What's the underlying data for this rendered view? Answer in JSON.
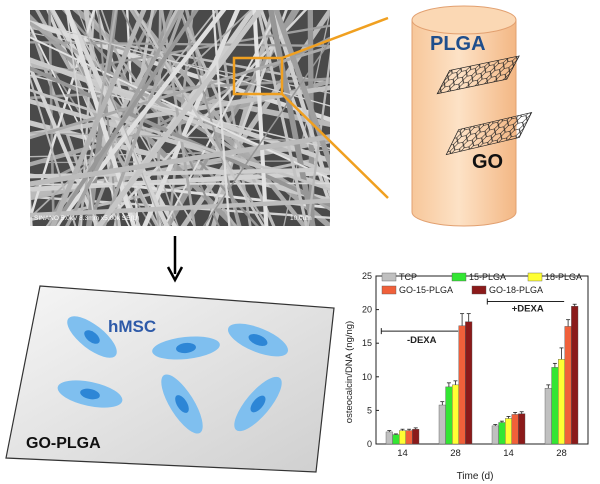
{
  "sem": {
    "caption": "SINANO 5.0kV 8.3mm x5.00k SE(U)",
    "scalebar": "10.0um"
  },
  "scaffold": {
    "top_label": "PLGA",
    "sheet_label": "GO"
  },
  "cells": {
    "cell_label": "hMSC",
    "substrate_label": "GO-PLGA"
  },
  "colors": {
    "accent_orange": "#f0a020",
    "fiber_gray": "#8c8c8c",
    "cell_blue": "#7fbfef",
    "nucleus_blue": "#2d86d6"
  },
  "chart_data": {
    "type": "bar",
    "categories": [
      "14",
      "28",
      "14",
      "28"
    ],
    "xlabel": "Time (d)",
    "ylabel": "osteocalcin/DNA (ng/ng)",
    "ylim": [
      0,
      25
    ],
    "yticks": [
      0,
      5,
      10,
      15,
      20,
      25
    ],
    "legend_position": "top",
    "group_annotations": [
      "-DEXA",
      "+DEXA"
    ],
    "series": [
      {
        "name": "TCP",
        "color": "#c0c0c0",
        "values": [
          1.8,
          5.8,
          2.7,
          8.3
        ],
        "errors": [
          0.2,
          0.5,
          0.2,
          0.5
        ]
      },
      {
        "name": "15-PLGA",
        "color": "#33e633",
        "values": [
          1.4,
          8.5,
          3.2,
          11.4
        ],
        "errors": [
          0.1,
          0.6,
          0.2,
          0.6
        ]
      },
      {
        "name": "18-PLGA",
        "color": "#ffff33",
        "values": [
          2.0,
          8.8,
          3.8,
          12.6
        ],
        "errors": [
          0.2,
          0.6,
          0.3,
          1.7
        ]
      },
      {
        "name": "GO-15-PLGA",
        "color": "#f0603a",
        "values": [
          2.0,
          17.6,
          4.4,
          17.5
        ],
        "errors": [
          0.2,
          1.8,
          0.3,
          1.0
        ]
      },
      {
        "name": "GO-18-PLGA",
        "color": "#8b1a1a",
        "values": [
          2.2,
          18.2,
          4.5,
          20.5
        ],
        "errors": [
          0.2,
          1.2,
          0.3,
          0.3
        ]
      }
    ]
  }
}
